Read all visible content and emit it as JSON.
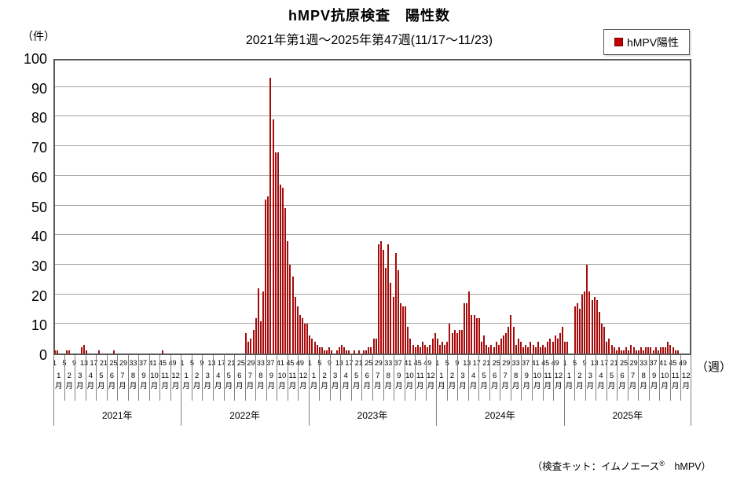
{
  "title": "hMPV抗原検査　陽性数",
  "subtitle": "2021年第1週～2025年第47週(11/17～11/23)",
  "legend": {
    "label": "hMPV陽性",
    "color": "#c00000"
  },
  "y_axis": {
    "unit": "（件）",
    "ticks": [
      100,
      90,
      80,
      70,
      60,
      50,
      40,
      30,
      20,
      10,
      0
    ],
    "max": 100
  },
  "x_axis": {
    "unit": "（週）",
    "week_labels": [
      1,
      5,
      9,
      13,
      17,
      21,
      25,
      29,
      33,
      37,
      41,
      45,
      49
    ],
    "month_labels": [
      "1",
      "2",
      "3",
      "4",
      "5",
      "6",
      "7",
      "8",
      "9",
      "10",
      "11",
      "12"
    ],
    "month_suffix": "月",
    "year_labels": [
      "2021年",
      "2022年",
      "2023年",
      "2024年",
      "2025年"
    ]
  },
  "footnote": {
    "pre": "（検査キット：イムノエース",
    "sup": "®",
    "post": "　hMPV）"
  },
  "chart_data": {
    "type": "bar",
    "title": "hMPV抗原検査　陽性数",
    "subtitle": "2021年第1週～2025年第47週(11/17～11/23)",
    "series_name": "hMPV陽性",
    "bar_color": "#c00000",
    "xlabel": "週",
    "ylabel": "件",
    "ylim": [
      0,
      100
    ],
    "grid": true,
    "legend_position": "top-right",
    "weeks_per_year_axis": 52,
    "years": [
      {
        "year": "2021年",
        "weeks": 52,
        "values": [
          1,
          1,
          0,
          0,
          0,
          1,
          1,
          0,
          0,
          0,
          0,
          2,
          3,
          1,
          0,
          0,
          0,
          0,
          1,
          0,
          0,
          0,
          0,
          0,
          1,
          0,
          0,
          0,
          0,
          0,
          0,
          0,
          0,
          0,
          0,
          0,
          0,
          0,
          0,
          0,
          0,
          0,
          0,
          0,
          1,
          0,
          0,
          0,
          0,
          0,
          0,
          0
        ]
      },
      {
        "year": "2022年",
        "weeks": 52,
        "values": [
          0,
          0,
          0,
          0,
          0,
          0,
          0,
          0,
          0,
          0,
          0,
          0,
          0,
          0,
          0,
          0,
          0,
          0,
          0,
          0,
          0,
          0,
          0,
          0,
          0,
          0,
          7,
          4,
          5,
          8,
          12,
          22,
          11,
          21,
          52,
          53,
          93,
          79,
          68,
          68,
          57,
          56,
          49,
          38,
          30,
          26,
          19,
          16,
          13,
          12,
          10,
          10
        ]
      },
      {
        "year": "2023年",
        "weeks": 52,
        "values": [
          6,
          5,
          4,
          3,
          2,
          2,
          1,
          1,
          2,
          1,
          0,
          1,
          2,
          3,
          2,
          1,
          1,
          0,
          1,
          0,
          1,
          0,
          1,
          1,
          2,
          2,
          5,
          5,
          37,
          38,
          35,
          29,
          37,
          24,
          19,
          34,
          28,
          17,
          16,
          16,
          9,
          5,
          3,
          2,
          3,
          2,
          4,
          3,
          2,
          3,
          5,
          7
        ]
      },
      {
        "year": "2024年",
        "weeks": 52,
        "values": [
          5,
          3,
          4,
          3,
          4,
          10,
          7,
          8,
          7,
          8,
          8,
          17,
          17,
          21,
          13,
          13,
          12,
          12,
          4,
          6,
          3,
          2,
          3,
          2,
          4,
          3,
          5,
          6,
          7,
          9,
          13,
          9,
          3,
          5,
          4,
          2,
          3,
          2,
          4,
          3,
          2,
          4,
          2,
          3,
          2,
          4,
          5,
          4,
          6,
          5,
          7,
          9
        ]
      },
      {
        "year": "2025年",
        "weeks": 47,
        "values": [
          4,
          4,
          0,
          0,
          16,
          17,
          15,
          20,
          21,
          30,
          21,
          18,
          19,
          18,
          14,
          10,
          9,
          4,
          5,
          3,
          2,
          1,
          2,
          1,
          1,
          2,
          1,
          3,
          2,
          1,
          1,
          2,
          1,
          2,
          2,
          2,
          1,
          2,
          1,
          2,
          2,
          2,
          4,
          3,
          2,
          1,
          1
        ]
      }
    ]
  }
}
